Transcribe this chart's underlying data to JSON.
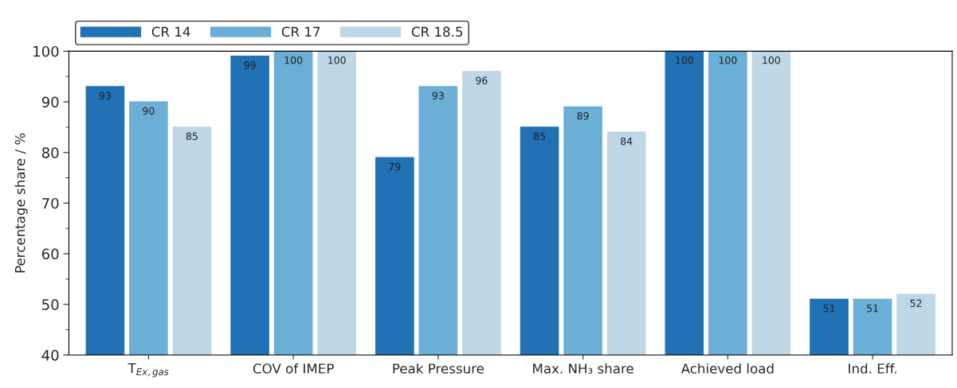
{
  "chart_data": {
    "type": "bar",
    "ylabel": "Percentage share / %",
    "categories": [
      "T$_{Ex,gas}$",
      "COV of IMEP",
      "Peak Pressure",
      "Max. NH₃ share",
      "Achieved load",
      "Ind. Eff."
    ],
    "series": [
      {
        "name": "CR 14",
        "color": "#2171b5",
        "values": [
          93,
          99,
          79,
          85,
          100,
          51
        ]
      },
      {
        "name": "CR 17",
        "color": "#6baed6",
        "values": [
          90,
          100,
          93,
          89,
          100,
          51
        ]
      },
      {
        "name": "CR 18.5",
        "color": "#bdd7e7",
        "values": [
          85,
          100,
          96,
          84,
          100,
          52
        ]
      }
    ],
    "ylim": [
      40,
      100
    ],
    "yticks": [
      40,
      50,
      60,
      70,
      80,
      90,
      100
    ],
    "data_labels": true,
    "grid": false,
    "legend": "top left"
  }
}
